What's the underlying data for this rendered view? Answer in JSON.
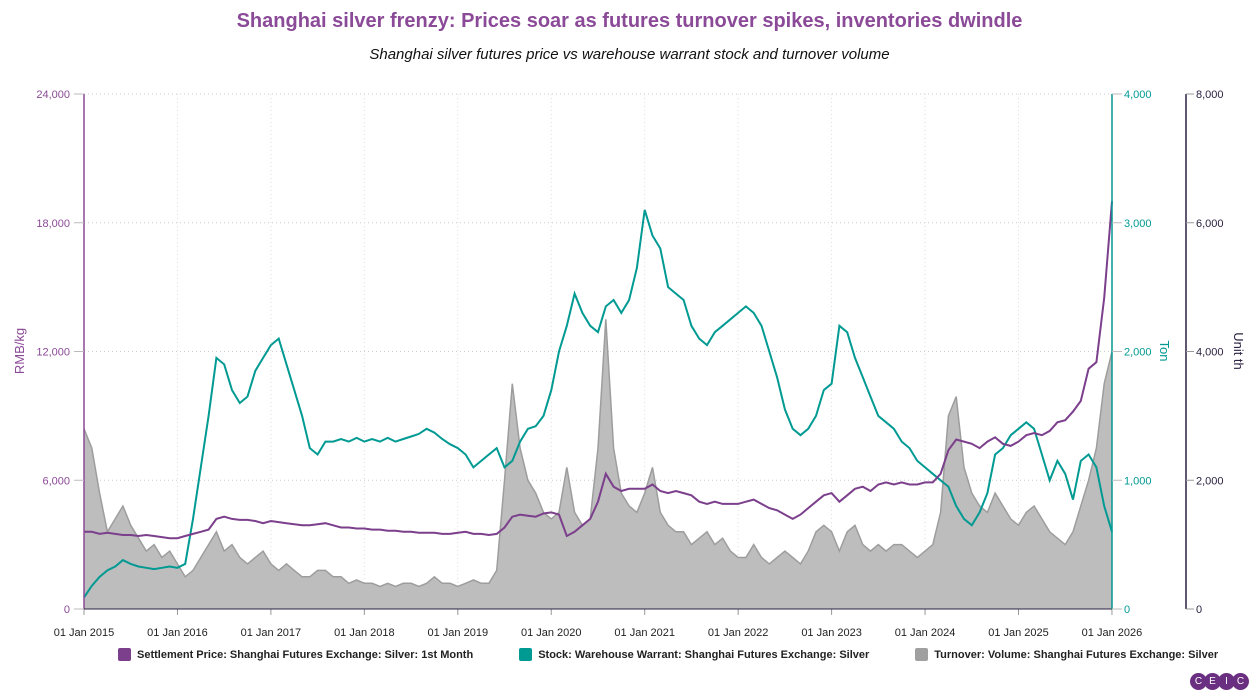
{
  "chart_data": {
    "type": "line",
    "title": "Shanghai silver frenzy: Prices soar as futures turnover spikes, inventories dwindle",
    "subtitle": "Shanghai silver futures price vs warehouse warrant stock and turnover volume",
    "x_start": "2015-01",
    "x_frequency": "monthly",
    "x_ticks": [
      "01 Jan 2015",
      "01 Jan 2016",
      "01 Jan 2017",
      "01 Jan 2018",
      "01 Jan 2019",
      "01 Jan 2020",
      "01 Jan 2021",
      "01 Jan 2022",
      "01 Jan 2023",
      "01 Jan 2024",
      "01 Jan 2025",
      "01 Jan 2026"
    ],
    "axes": {
      "left": {
        "label": "RMB/kg",
        "range": [
          0,
          24000
        ],
        "ticks": [
          "0",
          "6,000",
          "12,000",
          "18,000",
          "24,000"
        ],
        "color": "#8b4a97"
      },
      "right1": {
        "label": "Ton",
        "range": [
          0,
          4000
        ],
        "ticks": [
          "0",
          "1,000",
          "2,000",
          "3,000",
          "4,000"
        ],
        "color": "#009a93"
      },
      "right2": {
        "label": "Unit th",
        "range": [
          0,
          8000
        ],
        "ticks": [
          "0",
          "2,000",
          "4,000",
          "6,000",
          "8,000"
        ],
        "color": "#2b2140"
      }
    },
    "grid": true,
    "legend_placement": "bottom",
    "series": [
      {
        "name": "Settlement Price: Shanghai Futures Exchange: Silver: 1st Month",
        "axis": "left",
        "color": "#7b3f8c",
        "kind": "line",
        "values": [
          3600,
          3600,
          3500,
          3550,
          3500,
          3450,
          3450,
          3400,
          3450,
          3400,
          3350,
          3300,
          3300,
          3400,
          3500,
          3600,
          3700,
          4200,
          4300,
          4200,
          4150,
          4150,
          4100,
          4000,
          4100,
          4050,
          4000,
          3950,
          3900,
          3900,
          3950,
          4000,
          3900,
          3800,
          3800,
          3750,
          3750,
          3700,
          3700,
          3650,
          3650,
          3600,
          3600,
          3550,
          3550,
          3550,
          3500,
          3500,
          3550,
          3600,
          3500,
          3500,
          3450,
          3500,
          3800,
          4300,
          4400,
          4350,
          4300,
          4450,
          4500,
          4400,
          3400,
          3600,
          3900,
          4200,
          5000,
          6300,
          5700,
          5500,
          5600,
          5600,
          5600,
          5800,
          5500,
          5400,
          5500,
          5400,
          5300,
          5000,
          4900,
          5000,
          4900,
          4900,
          4900,
          5000,
          5100,
          4900,
          4700,
          4600,
          4400,
          4200,
          4400,
          4700,
          5000,
          5300,
          5400,
          5000,
          5300,
          5600,
          5700,
          5500,
          5800,
          5900,
          5800,
          5900,
          5800,
          5800,
          5900,
          5900,
          6300,
          7400,
          7900,
          7800,
          7700,
          7500,
          7800,
          8000,
          7700,
          7600,
          7800,
          8100,
          8200,
          8100,
          8300,
          8700,
          8800,
          9200,
          9700,
          11200,
          11500,
          14500,
          19000
        ]
      },
      {
        "name": "Stock: Warehouse Warrant: Shanghai Futures Exchange: Silver",
        "axis": "right1",
        "color": "#009a93",
        "kind": "line",
        "values": [
          90,
          180,
          250,
          300,
          330,
          380,
          350,
          330,
          320,
          310,
          320,
          330,
          320,
          350,
          700,
          1100,
          1500,
          1950,
          1900,
          1700,
          1600,
          1650,
          1850,
          1950,
          2050,
          2100,
          1900,
          1700,
          1500,
          1250,
          1200,
          1300,
          1300,
          1320,
          1300,
          1330,
          1300,
          1320,
          1300,
          1330,
          1300,
          1320,
          1340,
          1360,
          1400,
          1370,
          1320,
          1280,
          1250,
          1200,
          1100,
          1150,
          1200,
          1250,
          1100,
          1150,
          1300,
          1400,
          1420,
          1500,
          1700,
          2000,
          2200,
          2450,
          2300,
          2200,
          2150,
          2350,
          2400,
          2300,
          2400,
          2650,
          3100,
          2900,
          2800,
          2500,
          2450,
          2400,
          2200,
          2100,
          2050,
          2150,
          2200,
          2250,
          2300,
          2350,
          2300,
          2200,
          2000,
          1800,
          1550,
          1400,
          1350,
          1400,
          1500,
          1700,
          1750,
          2200,
          2150,
          1950,
          1800,
          1650,
          1500,
          1450,
          1400,
          1300,
          1250,
          1150,
          1100,
          1050,
          1000,
          950,
          800,
          700,
          650,
          750,
          900,
          1200,
          1250,
          1350,
          1400,
          1450,
          1400,
          1200,
          1000,
          1150,
          1050,
          850,
          1150,
          1200,
          1100,
          800,
          600
        ]
      },
      {
        "name": "Turnover: Volume: Shanghai Futures Exchange: Silver",
        "axis": "right2",
        "color": "#a0a0a0",
        "kind": "area",
        "values": [
          2800,
          2500,
          1800,
          1200,
          1400,
          1600,
          1300,
          1100,
          900,
          1000,
          800,
          900,
          700,
          500,
          600,
          800,
          1000,
          1200,
          900,
          1000,
          800,
          700,
          800,
          900,
          700,
          600,
          700,
          600,
          500,
          500,
          600,
          600,
          500,
          500,
          400,
          450,
          400,
          400,
          350,
          400,
          350,
          400,
          400,
          350,
          400,
          500,
          400,
          400,
          350,
          400,
          450,
          400,
          400,
          600,
          2000,
          3500,
          2500,
          2000,
          1800,
          1500,
          1400,
          1500,
          2200,
          1500,
          1300,
          1400,
          2500,
          4500,
          2500,
          1800,
          1600,
          1500,
          1800,
          2200,
          1500,
          1300,
          1200,
          1200,
          1000,
          1100,
          1200,
          1000,
          1100,
          900,
          800,
          800,
          1000,
          800,
          700,
          800,
          900,
          800,
          700,
          900,
          1200,
          1300,
          1200,
          900,
          1200,
          1300,
          1000,
          900,
          1000,
          900,
          1000,
          1000,
          900,
          800,
          900,
          1000,
          1500,
          3000,
          3300,
          2200,
          1800,
          1600,
          1500,
          1800,
          1600,
          1400,
          1300,
          1500,
          1600,
          1400,
          1200,
          1100,
          1000,
          1200,
          1600,
          2000,
          2500,
          3500,
          4000
        ]
      }
    ]
  },
  "logo": "CEIC"
}
